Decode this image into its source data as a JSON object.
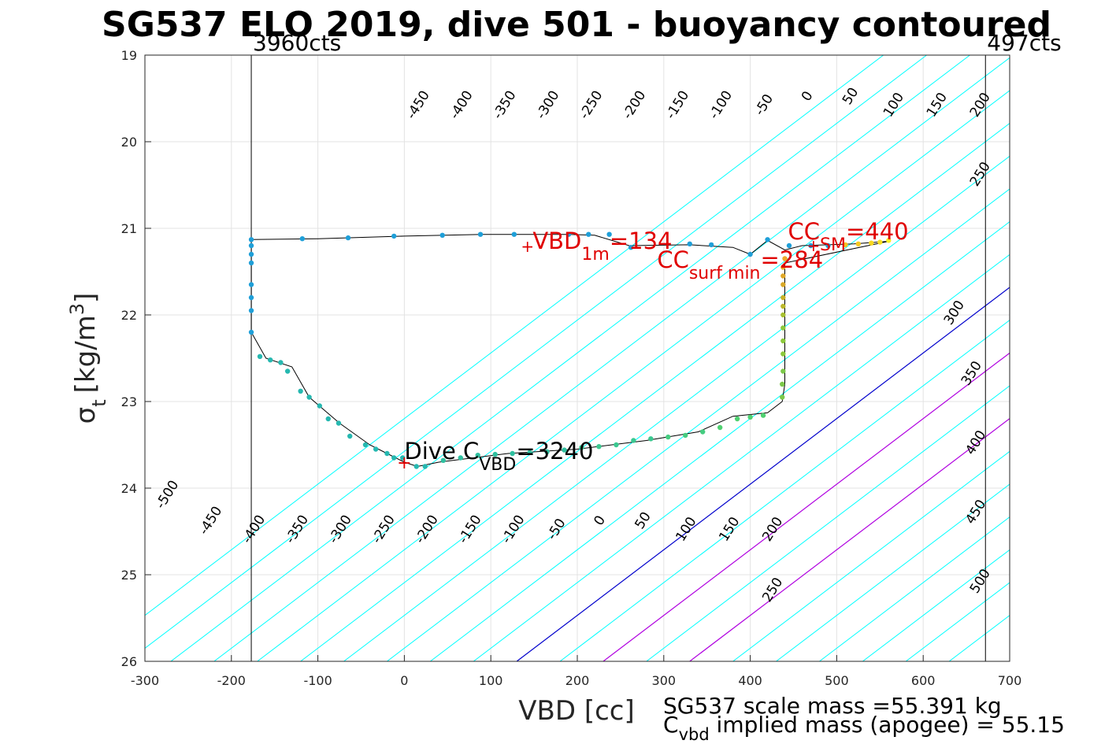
{
  "chart_data": {
    "type": "scatter",
    "title": "SG537 ELO 2019, dive 501 - buoyancy contoured",
    "xlabel": "VBD [cc]",
    "ylabel_main": "σ",
    "ylabel_sub": "t",
    "ylabel_unit": "[kg/m",
    "ylabel_sup": "3",
    "ylabel_close": "]",
    "xlim": [
      -300,
      700
    ],
    "ylim": [
      26,
      19
    ],
    "y_reversed": true,
    "grid": true,
    "x_ticks": [
      -300,
      -200,
      -100,
      0,
      100,
      200,
      300,
      400,
      500,
      600,
      700
    ],
    "x_tick_labels": [
      "-300",
      "-200",
      "-100",
      "0",
      "100",
      "200",
      "300",
      "400",
      "500",
      "600",
      "700"
    ],
    "y_ticks": [
      19,
      20,
      21,
      22,
      23,
      24,
      25,
      26
    ],
    "y_tick_labels": [
      "19",
      "20",
      "21",
      "22",
      "23",
      "24",
      "25",
      "26"
    ],
    "contour_levels": [
      -500,
      -450,
      -400,
      -350,
      -300,
      -250,
      -200,
      -150,
      -100,
      -50,
      0,
      50,
      100,
      150,
      200,
      250,
      300,
      350,
      400,
      450,
      500
    ],
    "contour_colors": {
      "default": "#00ffff",
      "zero": "#0000cc",
      "special": "#b000e0"
    },
    "contour_labels": [
      {
        "text": "-450",
        "x": 20,
        "y": 19.6
      },
      {
        "text": "-400",
        "x": 70,
        "y": 19.6
      },
      {
        "text": "-350",
        "x": 120,
        "y": 19.6
      },
      {
        "text": "-300",
        "x": 170,
        "y": 19.6
      },
      {
        "text": "-250",
        "x": 220,
        "y": 19.6
      },
      {
        "text": "-200",
        "x": 270,
        "y": 19.6
      },
      {
        "text": "-150",
        "x": 320,
        "y": 19.6
      },
      {
        "text": "-100",
        "x": 370,
        "y": 19.6
      },
      {
        "text": "-50",
        "x": 420,
        "y": 19.6
      },
      {
        "text": "0",
        "x": 470,
        "y": 19.5
      },
      {
        "text": "50",
        "x": 520,
        "y": 19.5
      },
      {
        "text": "100",
        "x": 570,
        "y": 19.6
      },
      {
        "text": "150",
        "x": 620,
        "y": 19.6
      },
      {
        "text": "200",
        "x": 670,
        "y": 19.6
      },
      {
        "text": "250",
        "x": 670,
        "y": 20.4
      },
      {
        "text": "300",
        "x": 640,
        "y": 22.0
      },
      {
        "text": "350",
        "x": 660,
        "y": 22.7
      },
      {
        "text": "400",
        "x": 665,
        "y": 23.5
      },
      {
        "text": "450",
        "x": 665,
        "y": 24.3
      },
      {
        "text": "500",
        "x": 670,
        "y": 25.1
      },
      {
        "text": "-500",
        "x": -270,
        "y": 24.1
      },
      {
        "text": "-450",
        "x": -220,
        "y": 24.4
      },
      {
        "text": "-400",
        "x": -170,
        "y": 24.5
      },
      {
        "text": "-350",
        "x": -120,
        "y": 24.5
      },
      {
        "text": "-300",
        "x": -70,
        "y": 24.5
      },
      {
        "text": "-250",
        "x": -20,
        "y": 24.5
      },
      {
        "text": "-200",
        "x": 30,
        "y": 24.5
      },
      {
        "text": "-150",
        "x": 80,
        "y": 24.5
      },
      {
        "text": "-100",
        "x": 130,
        "y": 24.5
      },
      {
        "text": "-50",
        "x": 180,
        "y": 24.5
      },
      {
        "text": "0",
        "x": 230,
        "y": 24.4
      },
      {
        "text": "50",
        "x": 280,
        "y": 24.4
      },
      {
        "text": "100",
        "x": 330,
        "y": 24.5
      },
      {
        "text": "150",
        "x": 380,
        "y": 24.5
      },
      {
        "text": "200",
        "x": 430,
        "y": 24.5
      },
      {
        "text": "250",
        "x": 430,
        "y": 25.2
      }
    ],
    "vertical_lines": [
      {
        "x": -177,
        "label": "3960cts"
      },
      {
        "x": 672,
        "label": "497cts"
      }
    ],
    "trajectory": [
      [
        -177,
        21.13
      ],
      [
        -100,
        21.12
      ],
      [
        0,
        21.09
      ],
      [
        90,
        21.07
      ],
      [
        190,
        21.07
      ],
      [
        220,
        21.08
      ],
      [
        260,
        21.2
      ],
      [
        330,
        21.19
      ],
      [
        380,
        21.22
      ],
      [
        400,
        21.3
      ],
      [
        420,
        21.14
      ],
      [
        440,
        21.25
      ],
      [
        460,
        21.2
      ],
      [
        520,
        21.18
      ],
      [
        560,
        21.15
      ],
      [
        440,
        21.4
      ],
      [
        440,
        22.0
      ],
      [
        440,
        22.8
      ],
      [
        437,
        23.0
      ],
      [
        420,
        23.13
      ],
      [
        380,
        23.17
      ],
      [
        340,
        23.35
      ],
      [
        280,
        23.45
      ],
      [
        200,
        23.55
      ],
      [
        120,
        23.6
      ],
      [
        40,
        23.7
      ],
      [
        15,
        23.75
      ],
      [
        0,
        23.7
      ],
      [
        -20,
        23.6
      ],
      [
        -40,
        23.5
      ],
      [
        -75,
        23.25
      ],
      [
        -110,
        22.95
      ],
      [
        -130,
        22.6
      ],
      [
        -160,
        22.5
      ],
      [
        -177,
        22.2
      ],
      [
        -177,
        21.13
      ]
    ],
    "points": [
      {
        "x": -177,
        "y": 21.13,
        "c": "#1f9fd8"
      },
      {
        "x": -177,
        "y": 21.2,
        "c": "#1f9fd8"
      },
      {
        "x": -177,
        "y": 21.3,
        "c": "#1f9fd8"
      },
      {
        "x": -177,
        "y": 21.4,
        "c": "#1f9fd8"
      },
      {
        "x": -177,
        "y": 21.65,
        "c": "#1f9fd8"
      },
      {
        "x": -177,
        "y": 21.8,
        "c": "#1f9fd8"
      },
      {
        "x": -177,
        "y": 21.95,
        "c": "#1f9fd8"
      },
      {
        "x": -177,
        "y": 22.2,
        "c": "#1f9fd8"
      },
      {
        "x": -118,
        "y": 21.12,
        "c": "#1f9fd8"
      },
      {
        "x": -65,
        "y": 21.11,
        "c": "#1f9fd8"
      },
      {
        "x": -12,
        "y": 21.09,
        "c": "#1f9fd8"
      },
      {
        "x": 44,
        "y": 21.08,
        "c": "#1f9fd8"
      },
      {
        "x": 88,
        "y": 21.07,
        "c": "#1f9fd8"
      },
      {
        "x": 127,
        "y": 21.07,
        "c": "#1f9fd8"
      },
      {
        "x": 190,
        "y": 21.07,
        "c": "#1f9fd8"
      },
      {
        "x": 213,
        "y": 21.07,
        "c": "#1f9fd8"
      },
      {
        "x": 237,
        "y": 21.07,
        "c": "#1f9fd8"
      },
      {
        "x": 262,
        "y": 21.22,
        "c": "#1f9fd8"
      },
      {
        "x": 330,
        "y": 21.18,
        "c": "#1f9fd8"
      },
      {
        "x": 355,
        "y": 21.19,
        "c": "#1f9fd8"
      },
      {
        "x": 400,
        "y": 21.3,
        "c": "#1f9fd8"
      },
      {
        "x": 420,
        "y": 21.13,
        "c": "#1f9fd8"
      },
      {
        "x": 445,
        "y": 21.2,
        "c": "#1f9fd8"
      },
      {
        "x": 470,
        "y": 21.2,
        "c": "#1f9fd8"
      },
      {
        "x": 490,
        "y": 21.2,
        "c": "#1f9fd8"
      },
      {
        "x": -167,
        "y": 22.48,
        "c": "#26b8b0"
      },
      {
        "x": -155,
        "y": 22.52,
        "c": "#26b8b0"
      },
      {
        "x": -143,
        "y": 22.55,
        "c": "#26b8b0"
      },
      {
        "x": -135,
        "y": 22.65,
        "c": "#26b8b0"
      },
      {
        "x": -120,
        "y": 22.88,
        "c": "#26b8b0"
      },
      {
        "x": -110,
        "y": 22.95,
        "c": "#26b8b0"
      },
      {
        "x": -98,
        "y": 23.05,
        "c": "#26b8b0"
      },
      {
        "x": -88,
        "y": 23.2,
        "c": "#26b8b0"
      },
      {
        "x": -76,
        "y": 23.25,
        "c": "#26b8b0"
      },
      {
        "x": -63,
        "y": 23.4,
        "c": "#26b8b0"
      },
      {
        "x": -45,
        "y": 23.5,
        "c": "#26b8b0"
      },
      {
        "x": -33,
        "y": 23.55,
        "c": "#26b8b0"
      },
      {
        "x": -20,
        "y": 23.6,
        "c": "#26b8b0"
      },
      {
        "x": -12,
        "y": 23.65,
        "c": "#26b8b0"
      },
      {
        "x": -2,
        "y": 23.65,
        "c": "#26b8b0"
      },
      {
        "x": 14,
        "y": 23.75,
        "c": "#26b8b0"
      },
      {
        "x": 24,
        "y": 23.75,
        "c": "#26b8b0"
      },
      {
        "x": 45,
        "y": 23.68,
        "c": "#2fc0a0"
      },
      {
        "x": 65,
        "y": 23.65,
        "c": "#2fc0a0"
      },
      {
        "x": 85,
        "y": 23.62,
        "c": "#2fc0a0"
      },
      {
        "x": 105,
        "y": 23.61,
        "c": "#2fc0a0"
      },
      {
        "x": 125,
        "y": 23.6,
        "c": "#2fc0a0"
      },
      {
        "x": 145,
        "y": 23.59,
        "c": "#2fc0a0"
      },
      {
        "x": 165,
        "y": 23.58,
        "c": "#2fc0a0"
      },
      {
        "x": 185,
        "y": 23.56,
        "c": "#2fc0a0"
      },
      {
        "x": 205,
        "y": 23.53,
        "c": "#3bc890"
      },
      {
        "x": 225,
        "y": 23.52,
        "c": "#3bc890"
      },
      {
        "x": 245,
        "y": 23.5,
        "c": "#3bc890"
      },
      {
        "x": 265,
        "y": 23.45,
        "c": "#3bc890"
      },
      {
        "x": 285,
        "y": 23.43,
        "c": "#3bc890"
      },
      {
        "x": 305,
        "y": 23.41,
        "c": "#45cc80"
      },
      {
        "x": 325,
        "y": 23.39,
        "c": "#45cc80"
      },
      {
        "x": 345,
        "y": 23.35,
        "c": "#45cc80"
      },
      {
        "x": 365,
        "y": 23.3,
        "c": "#4fd070"
      },
      {
        "x": 385,
        "y": 23.2,
        "c": "#4fd070"
      },
      {
        "x": 400,
        "y": 23.18,
        "c": "#4fd070"
      },
      {
        "x": 415,
        "y": 23.16,
        "c": "#4fd070"
      },
      {
        "x": 437,
        "y": 22.95,
        "c": "#7cc84a"
      },
      {
        "x": 437,
        "y": 22.8,
        "c": "#7cc84a"
      },
      {
        "x": 438,
        "y": 22.65,
        "c": "#7cc84a"
      },
      {
        "x": 438,
        "y": 22.45,
        "c": "#8cc83c"
      },
      {
        "x": 438,
        "y": 22.3,
        "c": "#8cc83c"
      },
      {
        "x": 438,
        "y": 22.15,
        "c": "#8cc83c"
      },
      {
        "x": 438,
        "y": 22.0,
        "c": "#a8c030"
      },
      {
        "x": 438,
        "y": 21.9,
        "c": "#bcb82c"
      },
      {
        "x": 438,
        "y": 21.8,
        "c": "#c8b028"
      },
      {
        "x": 438,
        "y": 21.65,
        "c": "#d8a828"
      },
      {
        "x": 438,
        "y": 21.55,
        "c": "#e0a828"
      },
      {
        "x": 438,
        "y": 21.45,
        "c": "#e8a828"
      },
      {
        "x": 440,
        "y": 21.35,
        "c": "#f0a828"
      },
      {
        "x": 510,
        "y": 21.19,
        "c": "#f8c020"
      },
      {
        "x": 525,
        "y": 21.18,
        "c": "#f8c820"
      },
      {
        "x": 540,
        "y": 21.17,
        "c": "#f8d820"
      },
      {
        "x": 550,
        "y": 21.16,
        "c": "#f8e020"
      },
      {
        "x": 560,
        "y": 21.14,
        "c": "#f8f020"
      }
    ],
    "markers": [
      {
        "x": 0,
        "y": 23.72,
        "label": "Dive C",
        "sub": "VBD",
        "tail": "=3240",
        "color": "#000000"
      },
      {
        "x": 132,
        "y": 21.2,
        "label": "VBD",
        "sub": "1m",
        "tail": "=134",
        "color": "#e00000"
      },
      {
        "x": 285,
        "y": 21.2,
        "label": "CC",
        "sub": "surf min",
        "tail": "=284",
        "color": "#e00000"
      },
      {
        "x": 440,
        "y": 21.18,
        "label": "CC",
        "sub": "SM",
        "tail": "=440",
        "color": "#e00000"
      }
    ],
    "footer": {
      "line1": "SG537 scale mass =55.391 kg",
      "line2_main": "C",
      "line2_sub": "vbd",
      "line2_tail": " implied mass (apogee) = 55.15"
    }
  }
}
